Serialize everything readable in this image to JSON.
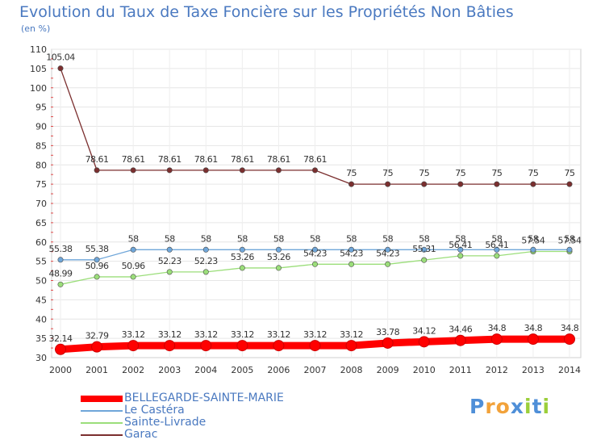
{
  "chart_data": {
    "type": "line",
    "title": "Evolution du Taux de Taxe Foncière sur les Propriétés Non Bâties",
    "ylabel": "(en %)",
    "xlabel": "",
    "ylim": [
      30,
      110
    ],
    "yticks": [
      30,
      35,
      40,
      45,
      50,
      55,
      60,
      65,
      70,
      75,
      80,
      85,
      90,
      95,
      100,
      105,
      110
    ],
    "categories": [
      "2000",
      "2001",
      "2002",
      "2003",
      "2004",
      "2005",
      "2006",
      "2007",
      "2008",
      "2009",
      "2010",
      "2011",
      "2012",
      "2013",
      "2014"
    ],
    "grid": true,
    "legend_position": "bottom-left",
    "series": [
      {
        "name": "BELLEGARDE-SAINTE-MARIE",
        "color": "#ff0000",
        "values": [
          32.14,
          32.79,
          33.12,
          33.12,
          33.12,
          33.12,
          33.12,
          33.12,
          33.12,
          33.78,
          34.12,
          34.46,
          34.8,
          34.8,
          34.8
        ],
        "labels": [
          "32.14",
          "32.79",
          "33.12",
          "33.12",
          "33.12",
          "33.12",
          "33.12",
          "33.12",
          "33.12",
          "33.78",
          "34.12",
          "34.46",
          "34.8",
          "34.8",
          "34.8"
        ]
      },
      {
        "name": "Le Castéra",
        "color": "#6fa6d9",
        "values": [
          55.38,
          55.38,
          58,
          58,
          58,
          58,
          58,
          58,
          58,
          58,
          58,
          58,
          58,
          58,
          58
        ],
        "labels": [
          "55.38",
          "55.38",
          "58",
          "58",
          "58",
          "58",
          "58",
          "58",
          "58",
          "58",
          "58",
          "58",
          "58",
          "58",
          "58"
        ]
      },
      {
        "name": "Sainte-Livrade",
        "color": "#9bde7a",
        "values": [
          48.99,
          50.96,
          50.96,
          52.23,
          52.23,
          53.26,
          53.26,
          54.23,
          54.23,
          54.23,
          55.31,
          56.41,
          56.41,
          57.54,
          57.54
        ],
        "labels": [
          "48.99",
          "50.96",
          "50.96",
          "52.23",
          "52.23",
          "53.26",
          "53.26",
          "54.23",
          "54.23",
          "54.23",
          "55.31",
          "56.41",
          "56.41",
          "57.54",
          "57.54"
        ]
      },
      {
        "name": "Garac",
        "color": "#7b2f2f",
        "values": [
          105.04,
          78.61,
          78.61,
          78.61,
          78.61,
          78.61,
          78.61,
          78.61,
          75,
          75,
          75,
          75,
          75,
          75,
          75
        ],
        "labels": [
          "105.04",
          "78.61",
          "78.61",
          "78.61",
          "78.61",
          "78.61",
          "78.61",
          "78.61",
          "75",
          "75",
          "75",
          "75",
          "75",
          "75",
          "75"
        ]
      }
    ]
  },
  "logo": {
    "text": "Proxiti",
    "letters": [
      "P",
      "r",
      "o",
      "x",
      "i",
      "t",
      "i"
    ]
  }
}
